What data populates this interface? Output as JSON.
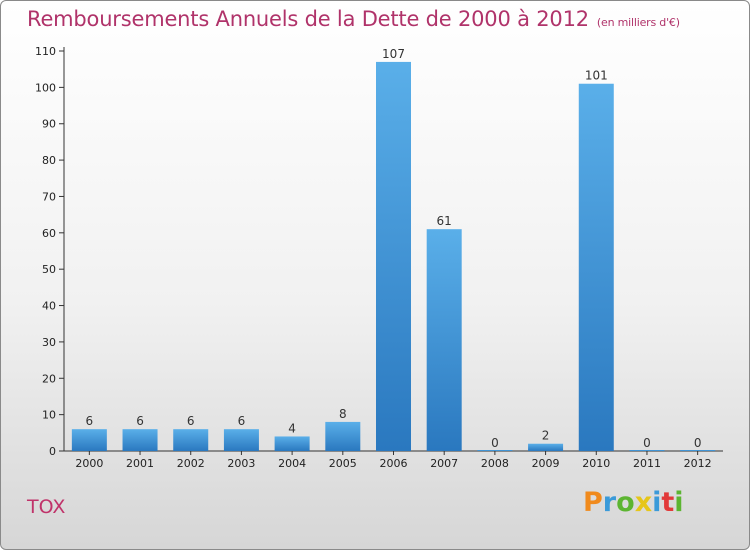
{
  "title": "Remboursements Annuels de la Dette de 2000 à 2012",
  "unit": "(en milliers d'€)",
  "commune": "TOX",
  "logo": {
    "letters": [
      "P",
      "r",
      "o",
      "x",
      "i",
      "t",
      "i"
    ],
    "colors": [
      "#f08a1c",
      "#3a9ad9",
      "#5cb531",
      "#e6c61a",
      "#3a9ad9",
      "#e23a3a",
      "#5cb531"
    ]
  },
  "colors": {
    "bar": "#4a9fe0",
    "title": "#b0336a"
  },
  "chart_data": {
    "type": "bar",
    "categories": [
      "2000",
      "2001",
      "2002",
      "2003",
      "2004",
      "2005",
      "2006",
      "2007",
      "2008",
      "2009",
      "2010",
      "2011",
      "2012"
    ],
    "values": [
      6,
      6,
      6,
      6,
      4,
      8,
      107,
      61,
      0,
      2,
      101,
      0,
      0
    ],
    "ylim": [
      0,
      110
    ],
    "yticks": [
      0,
      10,
      20,
      30,
      40,
      50,
      60,
      70,
      80,
      90,
      100,
      110
    ],
    "grid": false,
    "legend": "none"
  }
}
